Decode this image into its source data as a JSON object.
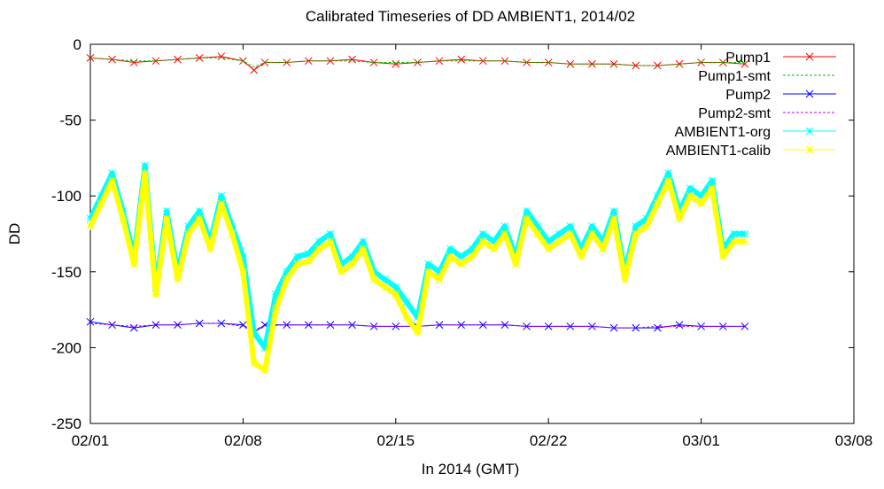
{
  "chart_data": {
    "type": "line",
    "title": "Calibrated Timeseries of DD AMBIENT1, 2014/02",
    "xlabel": "In 2014 (GMT)",
    "ylabel": "DD",
    "ylim": [
      -250,
      0
    ],
    "xlim": [
      "2014-02-01",
      "2014-03-08"
    ],
    "xticks": [
      "02/01",
      "02/08",
      "02/15",
      "02/22",
      "03/01",
      "03/08"
    ],
    "yticks": [
      "0",
      "-50",
      "-100",
      "-150",
      "-200",
      "-250"
    ],
    "grid": false,
    "legend_position": "top-right",
    "series": [
      {
        "name": "Pump1",
        "color": "#ff0000",
        "marker": "x",
        "x": [
          "2014-02-01",
          "2014-02-02",
          "2014-02-03",
          "2014-02-04",
          "2014-02-05",
          "2014-02-06",
          "2014-02-07",
          "2014-02-08",
          "2014-02-08 12:00",
          "2014-02-09",
          "2014-02-10",
          "2014-02-11",
          "2014-02-12",
          "2014-02-13",
          "2014-02-14",
          "2014-02-15",
          "2014-02-16",
          "2014-02-17",
          "2014-02-18",
          "2014-02-19",
          "2014-02-20",
          "2014-02-21",
          "2014-02-22",
          "2014-02-23",
          "2014-02-24",
          "2014-02-25",
          "2014-02-26",
          "2014-02-27",
          "2014-02-28",
          "2014-03-01",
          "2014-03-02",
          "2014-03-03"
        ],
        "y": [
          -9,
          -10,
          -12,
          -11,
          -10,
          -9,
          -8,
          -11,
          -17,
          -12,
          -12,
          -11,
          -11,
          -10,
          -12,
          -13,
          -12,
          -11,
          -10,
          -11,
          -11,
          -12,
          -12,
          -13,
          -13,
          -13,
          -14,
          -14,
          -13,
          -12,
          -12,
          -13
        ]
      },
      {
        "name": "Pump1-smt",
        "color": "#00c000",
        "marker": "none",
        "x": [
          "2014-02-01",
          "2014-02-02",
          "2014-02-03",
          "2014-02-04",
          "2014-02-05",
          "2014-02-06",
          "2014-02-07",
          "2014-02-08",
          "2014-02-08 12:00",
          "2014-02-09",
          "2014-02-10",
          "2014-02-11",
          "2014-02-12",
          "2014-02-13",
          "2014-02-14",
          "2014-02-15",
          "2014-02-16",
          "2014-02-17",
          "2014-02-18",
          "2014-02-19",
          "2014-02-20",
          "2014-02-21",
          "2014-02-22",
          "2014-02-23",
          "2014-02-24",
          "2014-02-25",
          "2014-02-26",
          "2014-02-27",
          "2014-02-28",
          "2014-03-01",
          "2014-03-02",
          "2014-03-03"
        ],
        "y": [
          -9,
          -10,
          -11,
          -11,
          -10,
          -9,
          -9,
          -11,
          -15,
          -12,
          -12,
          -11,
          -11,
          -11,
          -12,
          -12,
          -12,
          -11,
          -11,
          -11,
          -11,
          -12,
          -12,
          -13,
          -13,
          -13,
          -14,
          -14,
          -13,
          -12,
          -12,
          -12
        ]
      },
      {
        "name": "Pump2",
        "color": "#0000ff",
        "marker": "x",
        "x": [
          "2014-02-01",
          "2014-02-02",
          "2014-02-03",
          "2014-02-04",
          "2014-02-05",
          "2014-02-06",
          "2014-02-07",
          "2014-02-08",
          "2014-02-08 12:00",
          "2014-02-09",
          "2014-02-10",
          "2014-02-11",
          "2014-02-12",
          "2014-02-13",
          "2014-02-14",
          "2014-02-15",
          "2014-02-16",
          "2014-02-17",
          "2014-02-18",
          "2014-02-19",
          "2014-02-20",
          "2014-02-21",
          "2014-02-22",
          "2014-02-23",
          "2014-02-24",
          "2014-02-25",
          "2014-02-26",
          "2014-02-27",
          "2014-02-28",
          "2014-03-01",
          "2014-03-02",
          "2014-03-03"
        ],
        "y": [
          -183,
          -185,
          -187,
          -185,
          -185,
          -184,
          -184,
          -185,
          -190,
          -185,
          -185,
          -185,
          -185,
          -185,
          -186,
          -186,
          -186,
          -185,
          -185,
          -185,
          -185,
          -186,
          -186,
          -186,
          -186,
          -187,
          -187,
          -187,
          -185,
          -186,
          -186,
          -186
        ]
      },
      {
        "name": "Pump2-smt",
        "color": "#c000ff",
        "marker": "none",
        "x": [
          "2014-02-01",
          "2014-02-02",
          "2014-02-03",
          "2014-02-04",
          "2014-02-05",
          "2014-02-06",
          "2014-02-07",
          "2014-02-08",
          "2014-02-08 12:00",
          "2014-02-09",
          "2014-02-10",
          "2014-02-11",
          "2014-02-12",
          "2014-02-13",
          "2014-02-14",
          "2014-02-15",
          "2014-02-16",
          "2014-02-17",
          "2014-02-18",
          "2014-02-19",
          "2014-02-20",
          "2014-02-21",
          "2014-02-22",
          "2014-02-23",
          "2014-02-24",
          "2014-02-25",
          "2014-02-26",
          "2014-02-27",
          "2014-02-28",
          "2014-03-01",
          "2014-03-02",
          "2014-03-03"
        ],
        "y": [
          -184,
          -185,
          -186,
          -185,
          -185,
          -184,
          -184,
          -186,
          -188,
          -186,
          -185,
          -185,
          -185,
          -185,
          -186,
          -186,
          -186,
          -185,
          -185,
          -185,
          -185,
          -186,
          -186,
          -186,
          -186,
          -187,
          -187,
          -186,
          -186,
          -186,
          -186,
          -186
        ]
      },
      {
        "name": "AMBIENT1-org",
        "color": "#00ffff",
        "marker": "*",
        "x": [
          "2014-02-01",
          "2014-02-01 12:00",
          "2014-02-02",
          "2014-02-02 12:00",
          "2014-02-03",
          "2014-02-03 12:00",
          "2014-02-04",
          "2014-02-04 12:00",
          "2014-02-05",
          "2014-02-05 12:00",
          "2014-02-06",
          "2014-02-06 12:00",
          "2014-02-07",
          "2014-02-07 12:00",
          "2014-02-08",
          "2014-02-08 12:00",
          "2014-02-09",
          "2014-02-09 12:00",
          "2014-02-10",
          "2014-02-10 12:00",
          "2014-02-11",
          "2014-02-11 12:00",
          "2014-02-12",
          "2014-02-12 12:00",
          "2014-02-13",
          "2014-02-13 12:00",
          "2014-02-14",
          "2014-02-14 12:00",
          "2014-02-15",
          "2014-02-15 12:00",
          "2014-02-16",
          "2014-02-16 12:00",
          "2014-02-17",
          "2014-02-17 12:00",
          "2014-02-18",
          "2014-02-18 12:00",
          "2014-02-19",
          "2014-02-19 12:00",
          "2014-02-20",
          "2014-02-20 12:00",
          "2014-02-21",
          "2014-02-21 12:00",
          "2014-02-22",
          "2014-02-22 12:00",
          "2014-02-23",
          "2014-02-23 12:00",
          "2014-02-24",
          "2014-02-24 12:00",
          "2014-02-25",
          "2014-02-25 12:00",
          "2014-02-26",
          "2014-02-26 12:00",
          "2014-02-27",
          "2014-02-27 12:00",
          "2014-02-28",
          "2014-02-28 12:00",
          "2014-03-01",
          "2014-03-01 12:00",
          "2014-03-02",
          "2014-03-02 12:00",
          "2014-03-03"
        ],
        "y": [
          -115,
          -100,
          -85,
          -110,
          -140,
          -80,
          -160,
          -110,
          -150,
          -120,
          -110,
          -130,
          -100,
          -120,
          -140,
          -190,
          -200,
          -165,
          -150,
          -140,
          -138,
          -130,
          -125,
          -145,
          -140,
          -130,
          -150,
          -155,
          -160,
          -170,
          -180,
          -145,
          -150,
          -135,
          -140,
          -135,
          -125,
          -130,
          -120,
          -140,
          -110,
          -120,
          -130,
          -125,
          -120,
          -135,
          -120,
          -130,
          -110,
          -150,
          -120,
          -115,
          -100,
          -85,
          -110,
          -95,
          -100,
          -90,
          -135,
          -125,
          -125
        ]
      },
      {
        "name": "AMBIENT1-calib",
        "color": "#ffff00",
        "marker": "*",
        "x": [
          "2014-02-01",
          "2014-02-01 12:00",
          "2014-02-02",
          "2014-02-02 12:00",
          "2014-02-03",
          "2014-02-03 12:00",
          "2014-02-04",
          "2014-02-04 12:00",
          "2014-02-05",
          "2014-02-05 12:00",
          "2014-02-06",
          "2014-02-06 12:00",
          "2014-02-07",
          "2014-02-07 12:00",
          "2014-02-08",
          "2014-02-08 12:00",
          "2014-02-09",
          "2014-02-09 12:00",
          "2014-02-10",
          "2014-02-10 12:00",
          "2014-02-11",
          "2014-02-11 12:00",
          "2014-02-12",
          "2014-02-12 12:00",
          "2014-02-13",
          "2014-02-13 12:00",
          "2014-02-14",
          "2014-02-14 12:00",
          "2014-02-15",
          "2014-02-15 12:00",
          "2014-02-16",
          "2014-02-16 12:00",
          "2014-02-17",
          "2014-02-17 12:00",
          "2014-02-18",
          "2014-02-18 12:00",
          "2014-02-19",
          "2014-02-19 12:00",
          "2014-02-20",
          "2014-02-20 12:00",
          "2014-02-21",
          "2014-02-21 12:00",
          "2014-02-22",
          "2014-02-22 12:00",
          "2014-02-23",
          "2014-02-23 12:00",
          "2014-02-24",
          "2014-02-24 12:00",
          "2014-02-25",
          "2014-02-25 12:00",
          "2014-02-26",
          "2014-02-26 12:00",
          "2014-02-27",
          "2014-02-27 12:00",
          "2014-02-28",
          "2014-02-28 12:00",
          "2014-03-01",
          "2014-03-01 12:00",
          "2014-03-02",
          "2014-03-02 12:00",
          "2014-03-03"
        ],
        "y": [
          -120,
          -105,
          -90,
          -115,
          -145,
          -85,
          -165,
          -115,
          -155,
          -125,
          -115,
          -135,
          -105,
          -125,
          -150,
          -210,
          -215,
          -175,
          -155,
          -145,
          -143,
          -135,
          -130,
          -150,
          -145,
          -135,
          -155,
          -160,
          -165,
          -180,
          -190,
          -150,
          -155,
          -140,
          -145,
          -140,
          -130,
          -135,
          -125,
          -145,
          -115,
          -125,
          -135,
          -130,
          -125,
          -140,
          -125,
          -135,
          -115,
          -155,
          -125,
          -120,
          -105,
          -90,
          -115,
          -100,
          -105,
          -95,
          -140,
          -130,
          -130
        ]
      }
    ]
  }
}
